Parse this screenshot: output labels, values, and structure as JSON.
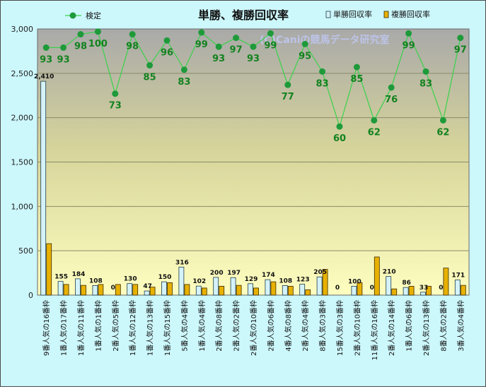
{
  "chart_data": {
    "type": "bar",
    "title": "単勝、複勝回収率",
    "watermark": "(C)Caniの競馬データ研究室",
    "legend": {
      "position": "top",
      "items": [
        {
          "label": "検定",
          "color": "#1e9a3a"
        },
        {
          "label": "単勝回収率",
          "color": "#d4f2f8"
        },
        {
          "label": "複勝回収率",
          "color": "#e8b100"
        }
      ]
    },
    "yaxis": {
      "min": 0,
      "max": 3000,
      "ticks": [
        0,
        500,
        1000,
        1500,
        2000,
        2500,
        3000
      ],
      "tick_labels": [
        "0",
        "500",
        "1,000",
        "1,500",
        "2,000",
        "2,500",
        "3,000"
      ]
    },
    "categories": [
      "9番人気の16番枠",
      "1番人気の17番枠",
      "1番人気の11番枠",
      "1番人気の1番枠",
      "2番人気の5番枠",
      "1番人気の12番枠",
      "1番人気の13番枠",
      "1番人気の15番枠",
      "5番人気の4番枠",
      "1番人気の4番枠",
      "2番人気の8番枠",
      "2番人気の2番枠",
      "2番人気の10番枠",
      "2番人気の6番枠",
      "4番人気の8番枠",
      "2番人気の4番枠",
      "8番人気の3番枠",
      "15番人気の3番枠",
      "2番人気の10番枠",
      "11番人気の16番枠",
      "2番人気の14番枠",
      "1番人気の6番枠",
      "2番人気の13番枠",
      "8番人気の2番枠",
      "3番人気の4番枠"
    ],
    "series": [
      {
        "name": "単勝回収率",
        "color": "#d4f2f8",
        "values": [
          2410,
          155,
          184,
          108,
          0,
          130,
          47,
          150,
          316,
          102,
          200,
          197,
          129,
          174,
          108,
          123,
          205,
          0,
          100,
          0,
          210,
          86,
          33,
          0,
          171
        ]
      },
      {
        "name": "複勝回収率",
        "color": "#e8b100",
        "values": [
          580,
          120,
          110,
          120,
          120,
          120,
          90,
          140,
          120,
          80,
          100,
          110,
          80,
          150,
          100,
          60,
          290,
          0,
          140,
          430,
          70,
          100,
          100,
          305,
          110
        ]
      },
      {
        "name": "検定",
        "color": "#1e9a3a",
        "y_values": [
          2790,
          2790,
          2940,
          2970,
          2270,
          2940,
          2590,
          2870,
          2540,
          2960,
          2800,
          2900,
          2800,
          2950,
          2370,
          2830,
          2520,
          1900,
          2570,
          1970,
          2340,
          2950,
          2520,
          1970,
          2900
        ],
        "labels": [
          93,
          93,
          98,
          100,
          73,
          98,
          85,
          96,
          83,
          99,
          93,
          97,
          93,
          99,
          77,
          95,
          83,
          60,
          85,
          62,
          76,
          99,
          83,
          62,
          97
        ]
      }
    ]
  }
}
